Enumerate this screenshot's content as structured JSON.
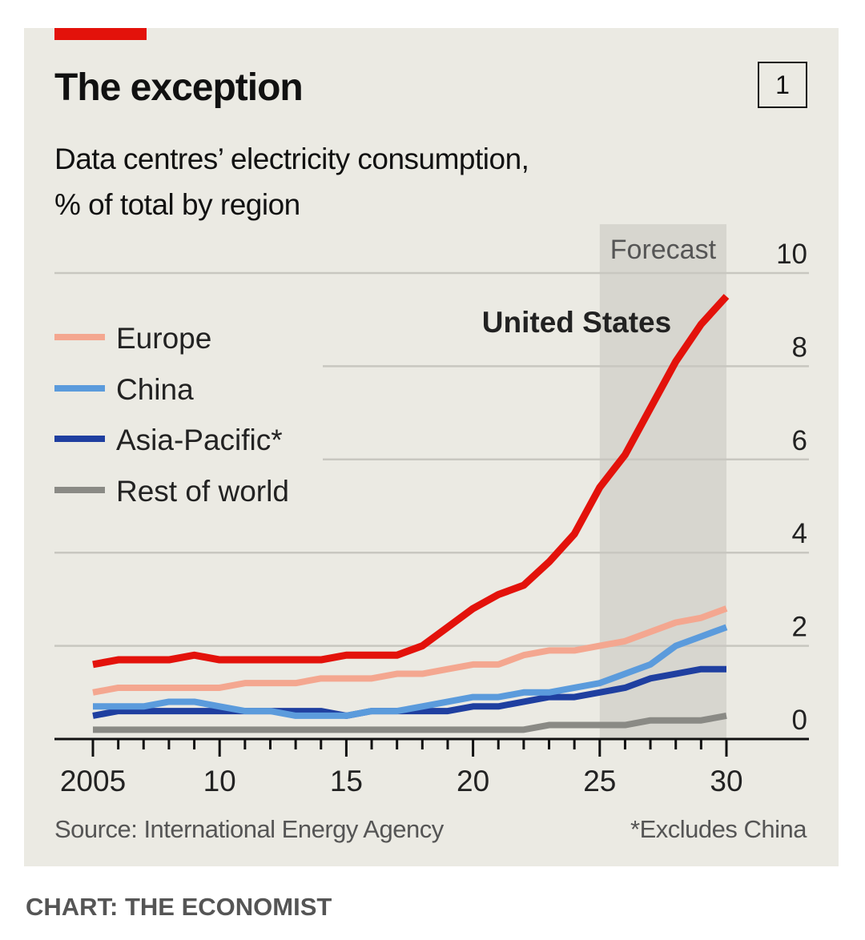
{
  "header": {
    "title": "The exception",
    "subtitle_line1": "Data centres’ electricity consumption,",
    "subtitle_line2": "% of total by region",
    "chart_number": "1"
  },
  "footer": {
    "source": "Source: International Energy Agency",
    "note": "*Excludes China",
    "credit": "CHART: THE ECONOMIST"
  },
  "colors": {
    "accent": "#e3120b",
    "background": "#ebeae3"
  },
  "chart_data": {
    "type": "line",
    "x": [
      2005,
      2006,
      2007,
      2008,
      2009,
      2010,
      2011,
      2012,
      2013,
      2014,
      2015,
      2016,
      2017,
      2018,
      2019,
      2020,
      2021,
      2022,
      2023,
      2024,
      2025,
      2026,
      2027,
      2028,
      2029,
      2030
    ],
    "xlim": [
      2005,
      2030
    ],
    "xticks": [
      2005,
      2010,
      2015,
      2020,
      2025,
      2030
    ],
    "xtick_labels": [
      "2005",
      "10",
      "15",
      "20",
      "25",
      "30"
    ],
    "ylim": [
      0,
      10
    ],
    "yticks": [
      0,
      2,
      4,
      6,
      8,
      10
    ],
    "ytick_labels": [
      "0",
      "2",
      "4",
      "6",
      "8",
      "10"
    ],
    "y_axis_side": "right",
    "grid": true,
    "forecast": {
      "label": "Forecast",
      "from": 2025,
      "to": 2030
    },
    "legend": "left",
    "series": [
      {
        "name": "United States",
        "color": "#e3120b",
        "label_on_chart": true,
        "values": [
          1.6,
          1.7,
          1.7,
          1.7,
          1.8,
          1.7,
          1.7,
          1.7,
          1.7,
          1.7,
          1.8,
          1.8,
          1.8,
          2.0,
          2.4,
          2.8,
          3.1,
          3.3,
          3.8,
          4.4,
          5.4,
          6.1,
          7.1,
          8.1,
          8.9,
          9.5
        ]
      },
      {
        "name": "Europe",
        "color": "#f4a790",
        "values": [
          1.0,
          1.1,
          1.1,
          1.1,
          1.1,
          1.1,
          1.2,
          1.2,
          1.2,
          1.3,
          1.3,
          1.3,
          1.4,
          1.4,
          1.5,
          1.6,
          1.6,
          1.8,
          1.9,
          1.9,
          2.0,
          2.1,
          2.3,
          2.5,
          2.6,
          2.8
        ]
      },
      {
        "name": "China",
        "color": "#5b9bdc",
        "values": [
          0.7,
          0.7,
          0.7,
          0.8,
          0.8,
          0.7,
          0.6,
          0.6,
          0.5,
          0.5,
          0.5,
          0.6,
          0.6,
          0.7,
          0.8,
          0.9,
          0.9,
          1.0,
          1.0,
          1.1,
          1.2,
          1.4,
          1.6,
          2.0,
          2.2,
          2.4
        ]
      },
      {
        "name": "Asia-Pacific*",
        "color": "#1f3fa0",
        "values": [
          0.5,
          0.6,
          0.6,
          0.6,
          0.6,
          0.6,
          0.6,
          0.6,
          0.6,
          0.6,
          0.5,
          0.6,
          0.6,
          0.6,
          0.6,
          0.7,
          0.7,
          0.8,
          0.9,
          0.9,
          1.0,
          1.1,
          1.3,
          1.4,
          1.5,
          1.5
        ]
      },
      {
        "name": "Rest of world",
        "color": "#8a8a85",
        "values": [
          0.2,
          0.2,
          0.2,
          0.2,
          0.2,
          0.2,
          0.2,
          0.2,
          0.2,
          0.2,
          0.2,
          0.2,
          0.2,
          0.2,
          0.2,
          0.2,
          0.2,
          0.2,
          0.3,
          0.3,
          0.3,
          0.3,
          0.4,
          0.4,
          0.4,
          0.5
        ]
      }
    ]
  }
}
